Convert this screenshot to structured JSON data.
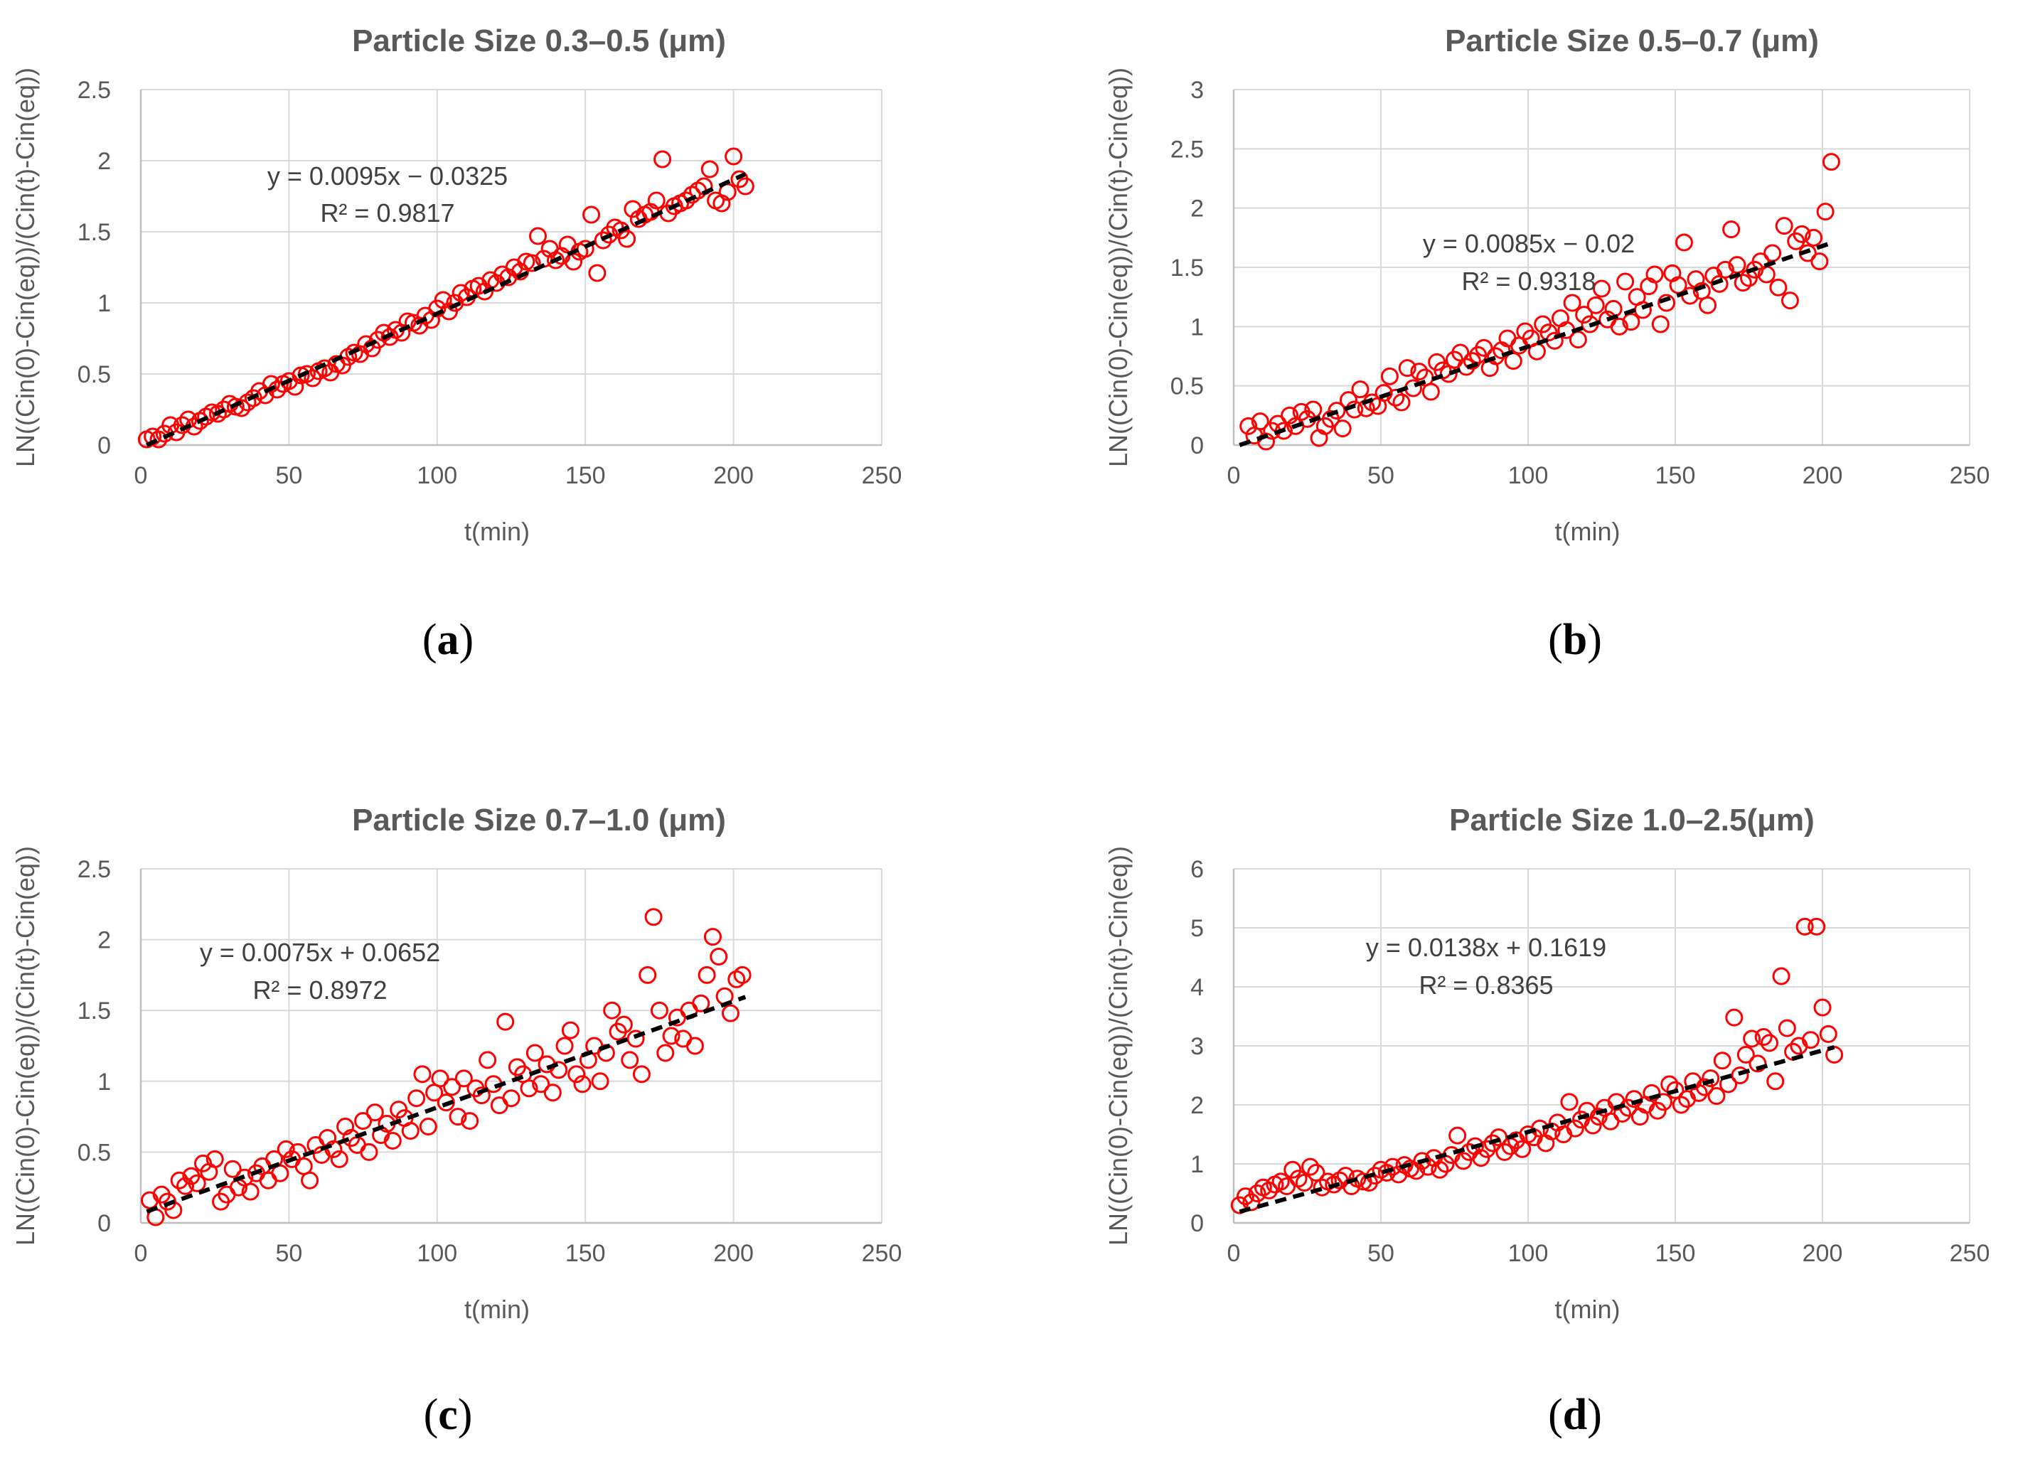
{
  "colors": {
    "marker": "#ff0000",
    "trendline": "#000000",
    "grid": "#d9d9d9",
    "text": "#595959"
  },
  "chart_data": [
    {
      "type": "scatter",
      "title": "Particle Size 0.3–0.5 (μm)",
      "xlabel": "t(min)",
      "ylabel": "LN((Cin(0)-Cin(eq))/(Cin(t)-Cin(eq))",
      "xlim": [
        0,
        250
      ],
      "ylim": [
        0,
        2.5
      ],
      "x_ticks": [
        "0",
        "50",
        "100",
        "150",
        "200",
        "250"
      ],
      "y_ticks": [
        "0",
        "0.5",
        "1",
        "1.5",
        "2",
        "2.5"
      ],
      "trendline": {
        "slope": 0.0095,
        "intercept": -0.0325,
        "x_range": [
          2,
          204
        ],
        "equation": "y = 0.0095x − 0.0325",
        "r2": "R² = 0.9817"
      },
      "panel_label": "a",
      "series": [
        {
          "name": "data",
          "x": [
            2,
            4,
            6,
            8,
            10,
            12,
            14,
            16,
            18,
            20,
            22,
            24,
            26,
            28,
            30,
            32,
            34,
            36,
            38,
            40,
            42,
            44,
            46,
            48,
            50,
            52,
            54,
            56,
            58,
            60,
            62,
            64,
            66,
            68,
            70,
            72,
            74,
            76,
            78,
            80,
            82,
            84,
            86,
            88,
            90,
            92,
            94,
            96,
            98,
            100,
            102,
            104,
            106,
            108,
            110,
            112,
            114,
            116,
            118,
            120,
            122,
            124,
            126,
            128,
            130,
            132,
            134,
            136,
            138,
            140,
            142,
            144,
            146,
            148,
            150,
            152,
            154,
            156,
            158,
            160,
            162,
            164,
            166,
            168,
            170,
            172,
            174,
            176,
            178,
            180,
            182,
            184,
            186,
            188,
            190,
            192,
            194,
            196,
            198,
            200,
            202,
            204
          ],
          "y": [
            0.04,
            0.06,
            0.04,
            0.08,
            0.14,
            0.09,
            0.14,
            0.18,
            0.13,
            0.17,
            0.2,
            0.23,
            0.22,
            0.25,
            0.29,
            0.27,
            0.26,
            0.3,
            0.33,
            0.38,
            0.35,
            0.43,
            0.39,
            0.43,
            0.45,
            0.41,
            0.49,
            0.5,
            0.47,
            0.52,
            0.54,
            0.51,
            0.57,
            0.56,
            0.62,
            0.65,
            0.64,
            0.71,
            0.68,
            0.74,
            0.79,
            0.76,
            0.81,
            0.79,
            0.87,
            0.86,
            0.84,
            0.91,
            0.88,
            0.96,
            1.02,
            0.94,
            1.0,
            1.07,
            1.04,
            1.1,
            1.12,
            1.08,
            1.16,
            1.14,
            1.2,
            1.18,
            1.25,
            1.22,
            1.29,
            1.28,
            1.47,
            1.31,
            1.38,
            1.3,
            1.33,
            1.41,
            1.29,
            1.36,
            1.38,
            1.62,
            1.21,
            1.44,
            1.48,
            1.53,
            1.51,
            1.45,
            1.66,
            1.59,
            1.62,
            1.64,
            1.72,
            2.01,
            1.63,
            1.68,
            1.7,
            1.72,
            1.76,
            1.79,
            1.82,
            1.94,
            1.72,
            1.7,
            1.78,
            2.03,
            1.87,
            1.82
          ]
        }
      ]
    },
    {
      "type": "scatter",
      "title": "Particle Size 0.5–0.7 (μm)",
      "xlabel": "t(min)",
      "ylabel": "LN((Cin(0)-Cin(eq))/(Cin(t)-Cin(eq))",
      "xlim": [
        0,
        250
      ],
      "ylim": [
        0,
        3
      ],
      "x_ticks": [
        "0",
        "50",
        "100",
        "150",
        "200",
        "250"
      ],
      "y_ticks": [
        "0",
        "0.5",
        "1",
        "1.5",
        "2",
        "2.5",
        "3"
      ],
      "trendline": {
        "slope": 0.0085,
        "intercept": -0.02,
        "x_range": [
          2,
          204
        ],
        "equation": "y = 0.0085x − 0.02",
        "r2": "R² = 0.9318"
      },
      "panel_label": "b",
      "series": [
        {
          "name": "data",
          "x": [
            5,
            7,
            9,
            11,
            13,
            15,
            17,
            19,
            21,
            23,
            25,
            27,
            29,
            31,
            33,
            35,
            37,
            39,
            41,
            43,
            45,
            47,
            49,
            51,
            53,
            55,
            57,
            59,
            61,
            63,
            65,
            67,
            69,
            71,
            73,
            75,
            77,
            79,
            81,
            83,
            85,
            87,
            89,
            91,
            93,
            95,
            97,
            99,
            101,
            103,
            105,
            107,
            109,
            111,
            113,
            115,
            117,
            119,
            121,
            123,
            125,
            127,
            129,
            131,
            133,
            135,
            137,
            139,
            141,
            143,
            145,
            147,
            149,
            151,
            153,
            155,
            157,
            159,
            161,
            163,
            165,
            167,
            169,
            171,
            173,
            175,
            177,
            179,
            181,
            183,
            185,
            187,
            189,
            191,
            193,
            195,
            197,
            199,
            201,
            203
          ],
          "y": [
            0.16,
            0.08,
            0.2,
            0.03,
            0.12,
            0.18,
            0.12,
            0.25,
            0.16,
            0.28,
            0.22,
            0.3,
            0.06,
            0.16,
            0.22,
            0.29,
            0.14,
            0.38,
            0.3,
            0.47,
            0.31,
            0.36,
            0.33,
            0.44,
            0.58,
            0.4,
            0.36,
            0.65,
            0.48,
            0.62,
            0.57,
            0.45,
            0.7,
            0.63,
            0.6,
            0.72,
            0.78,
            0.66,
            0.71,
            0.76,
            0.82,
            0.65,
            0.75,
            0.8,
            0.9,
            0.71,
            0.84,
            0.96,
            0.9,
            0.79,
            1.02,
            0.95,
            0.88,
            1.07,
            0.97,
            1.2,
            0.89,
            1.1,
            1.02,
            1.18,
            1.32,
            1.06,
            1.15,
            1.0,
            1.38,
            1.04,
            1.25,
            1.14,
            1.34,
            1.44,
            1.02,
            1.2,
            1.45,
            1.35,
            1.71,
            1.26,
            1.4,
            1.3,
            1.18,
            1.43,
            1.36,
            1.48,
            1.82,
            1.52,
            1.37,
            1.41,
            1.48,
            1.55,
            1.44,
            1.62,
            1.33,
            1.85,
            1.22,
            1.72,
            1.78,
            1.62,
            1.75,
            1.55,
            1.97,
            2.39
          ]
        }
      ]
    },
    {
      "type": "scatter",
      "title": "Particle Size 0.7–1.0 (μm)",
      "xlabel": "t(min)",
      "ylabel": "LN((Cin(0)-Cin(eq))/(Cin(t)-Cin(eq))",
      "xlim": [
        0,
        250
      ],
      "ylim": [
        0,
        2.5
      ],
      "x_ticks": [
        "0",
        "50",
        "100",
        "150",
        "200",
        "250"
      ],
      "y_ticks": [
        "0",
        "0.5",
        "1",
        "1.5",
        "2",
        "2.5"
      ],
      "trendline": {
        "slope": 0.0075,
        "intercept": 0.0652,
        "x_range": [
          2,
          204
        ],
        "equation": "y = 0.0075x + 0.0652",
        "r2": "R² = 0.8972"
      },
      "panel_label": "c",
      "series": [
        {
          "name": "data",
          "x": [
            3,
            5,
            7,
            9,
            11,
            13,
            15,
            17,
            19,
            21,
            23,
            25,
            27,
            29,
            31,
            33,
            35,
            37,
            39,
            41,
            43,
            45,
            47,
            49,
            51,
            53,
            55,
            57,
            59,
            61,
            63,
            65,
            67,
            69,
            71,
            73,
            75,
            77,
            79,
            81,
            83,
            85,
            87,
            89,
            91,
            93,
            95,
            97,
            99,
            101,
            103,
            105,
            107,
            109,
            111,
            113,
            115,
            117,
            119,
            121,
            123,
            125,
            127,
            129,
            131,
            133,
            135,
            137,
            139,
            141,
            143,
            145,
            147,
            149,
            151,
            153,
            155,
            157,
            159,
            161,
            163,
            165,
            167,
            169,
            171,
            173,
            175,
            177,
            179,
            181,
            183,
            185,
            187,
            189,
            191,
            193,
            195,
            197,
            199,
            201,
            203
          ],
          "y": [
            0.16,
            0.04,
            0.2,
            0.15,
            0.09,
            0.3,
            0.26,
            0.33,
            0.28,
            0.42,
            0.36,
            0.45,
            0.15,
            0.2,
            0.38,
            0.25,
            0.32,
            0.22,
            0.35,
            0.4,
            0.3,
            0.45,
            0.35,
            0.52,
            0.45,
            0.5,
            0.4,
            0.3,
            0.55,
            0.48,
            0.6,
            0.52,
            0.45,
            0.68,
            0.6,
            0.55,
            0.72,
            0.5,
            0.78,
            0.62,
            0.7,
            0.58,
            0.8,
            0.74,
            0.65,
            0.88,
            1.05,
            0.68,
            0.92,
            1.02,
            0.85,
            0.96,
            0.75,
            1.02,
            0.72,
            0.95,
            0.9,
            1.15,
            0.98,
            0.83,
            1.42,
            0.88,
            1.1,
            1.05,
            0.95,
            1.2,
            0.98,
            1.12,
            0.92,
            1.08,
            1.25,
            1.36,
            1.05,
            0.98,
            1.15,
            1.25,
            1.0,
            1.2,
            1.5,
            1.35,
            1.4,
            1.15,
            1.3,
            1.05,
            1.75,
            2.16,
            1.5,
            1.2,
            1.32,
            1.45,
            1.3,
            1.5,
            1.25,
            1.55,
            1.75,
            2.02,
            1.88,
            1.6,
            1.48,
            1.72,
            1.75
          ]
        }
      ]
    },
    {
      "type": "scatter",
      "title": "Particle Size 1.0–2.5(μm)",
      "xlabel": "t(min)",
      "ylabel": "LN((Cin(0)-Cin(eq))/(Cin(t)-Cin(eq))",
      "xlim": [
        0,
        250
      ],
      "ylim": [
        0,
        6
      ],
      "x_ticks": [
        "0",
        "50",
        "100",
        "150",
        "200",
        "250"
      ],
      "y_ticks": [
        "0",
        "1",
        "2",
        "3",
        "4",
        "5",
        "6"
      ],
      "trendline": {
        "slope": 0.0138,
        "intercept": 0.1619,
        "x_range": [
          2,
          204
        ],
        "equation": "y = 0.0138x + 0.1619",
        "r2": "R² = 0.8365"
      },
      "panel_label": "d",
      "series": [
        {
          "name": "data",
          "x": [
            2,
            4,
            6,
            8,
            10,
            12,
            14,
            16,
            18,
            20,
            22,
            24,
            26,
            28,
            30,
            32,
            34,
            36,
            38,
            40,
            42,
            44,
            46,
            48,
            50,
            52,
            54,
            56,
            58,
            60,
            62,
            64,
            66,
            68,
            70,
            72,
            74,
            76,
            78,
            80,
            82,
            84,
            86,
            88,
            90,
            92,
            94,
            96,
            98,
            100,
            102,
            104,
            106,
            108,
            110,
            112,
            114,
            116,
            118,
            120,
            122,
            124,
            126,
            128,
            130,
            132,
            134,
            136,
            138,
            140,
            142,
            144,
            146,
            148,
            150,
            152,
            154,
            156,
            158,
            160,
            162,
            164,
            166,
            168,
            170,
            172,
            174,
            176,
            178,
            180,
            182,
            184,
            186,
            188,
            190,
            192,
            194,
            196,
            198,
            200,
            202,
            204
          ],
          "y": [
            0.3,
            0.45,
            0.35,
            0.5,
            0.6,
            0.55,
            0.65,
            0.7,
            0.62,
            0.9,
            0.75,
            0.68,
            0.95,
            0.85,
            0.6,
            0.7,
            0.65,
            0.72,
            0.8,
            0.62,
            0.75,
            0.7,
            0.68,
            0.8,
            0.9,
            0.85,
            0.95,
            0.82,
            0.98,
            0.92,
            0.88,
            1.05,
            0.95,
            1.1,
            0.9,
            1.0,
            1.15,
            1.48,
            1.05,
            1.2,
            1.3,
            1.1,
            1.25,
            1.35,
            1.45,
            1.2,
            1.3,
            1.4,
            1.25,
            1.5,
            1.45,
            1.6,
            1.35,
            1.55,
            1.7,
            1.5,
            2.05,
            1.6,
            1.75,
            1.9,
            1.65,
            1.8,
            1.95,
            1.72,
            2.05,
            1.85,
            1.95,
            2.1,
            1.8,
            2.0,
            2.2,
            1.9,
            2.05,
            2.35,
            2.25,
            2.0,
            2.1,
            2.4,
            2.2,
            2.3,
            2.45,
            2.15,
            2.75,
            2.35,
            3.48,
            2.5,
            2.85,
            3.12,
            2.7,
            3.15,
            3.05,
            2.4,
            4.18,
            3.3,
            2.9,
            3.0,
            5.02,
            3.1,
            5.02,
            3.65,
            3.2,
            2.85
          ]
        }
      ]
    }
  ]
}
